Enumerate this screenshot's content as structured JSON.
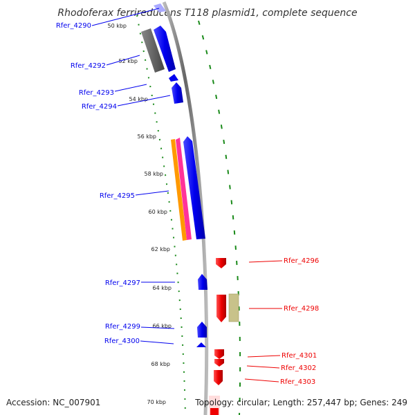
{
  "title": "Rhodoferax ferrireducens T118 plasmid1, complete sequence",
  "accession": "Accession: NC_007901",
  "summary": "Topology: circular; Length: 257,447 bp; Genes: 249",
  "colors": {
    "plus_strand": "#0000ee",
    "minus_strand": "#ee0000",
    "backbone": "#888888",
    "gc_ticks": "#1a8a1a",
    "gray_feature": "#666666",
    "orange_feature": "#ff9900",
    "magenta_feature": "#ff3399",
    "khaki_feature": "#c8c28a"
  },
  "ticks": [
    "50 kbp",
    "52 kbp",
    "54 kbp",
    "56 kbp",
    "58 kbp",
    "60 kbp",
    "62 kbp",
    "64 kbp",
    "66 kbp",
    "68 kbp",
    "70 kbp"
  ],
  "genes_left": [
    "Rfer_4290",
    "Rfer_4292",
    "Rfer_4293",
    "Rfer_4294",
    "Rfer_4295",
    "Rfer_4297",
    "Rfer_4299",
    "Rfer_4300"
  ],
  "genes_right": [
    "Rfer_4296",
    "Rfer_4298",
    "Rfer_4301",
    "Rfer_4302",
    "Rfer_4303"
  ]
}
